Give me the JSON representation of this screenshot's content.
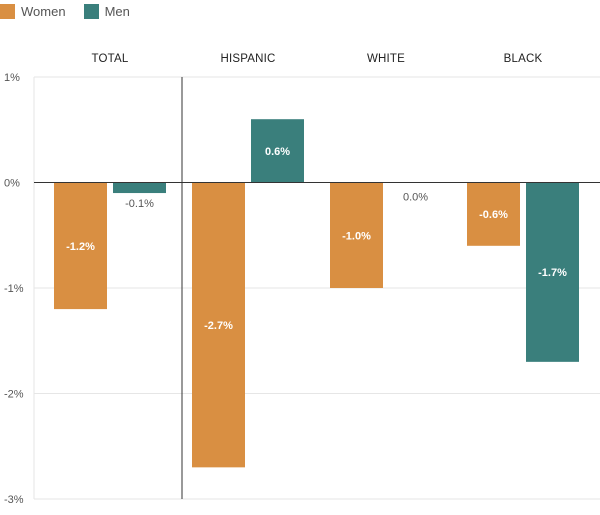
{
  "chart_data": {
    "type": "bar",
    "categories": [
      "TOTAL",
      "HISPANIC",
      "WHITE",
      "BLACK"
    ],
    "series": [
      {
        "name": "Women",
        "color": "#d98f42",
        "values": [
          -1.2,
          -2.7,
          -1.0,
          -0.6
        ],
        "labels": [
          "-1.2%",
          "-2.7%",
          "-1.0%",
          "-0.6%"
        ]
      },
      {
        "name": "Men",
        "color": "#3a7f7c",
        "values": [
          -0.1,
          0.6,
          0.0,
          -1.7
        ],
        "labels": [
          "-0.1%",
          "0.6%",
          "0.0%",
          "-1.7%"
        ]
      }
    ],
    "yticks": [
      1,
      0,
      -1,
      -2,
      -3
    ],
    "ytick_labels": [
      "1%",
      "0%",
      "-1%",
      "-2%",
      "-3%"
    ],
    "ylim": [
      -3,
      1
    ],
    "legend_position": "top-left",
    "grid": true
  }
}
